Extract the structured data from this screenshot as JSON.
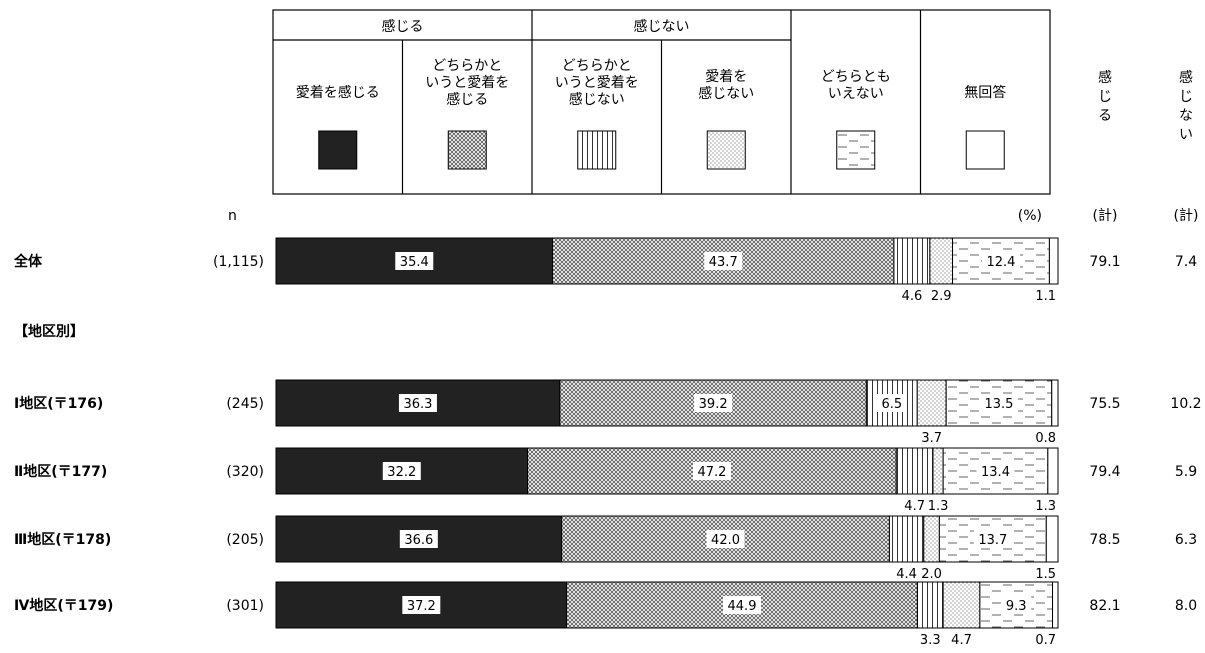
{
  "chart_data": {
    "type": "bar",
    "orientation": "horizontal",
    "stacked": true,
    "percent_unit": "(%)",
    "n_label": "n",
    "legend": {
      "groups": [
        {
          "label": "感じる",
          "spans": [
            0,
            1
          ]
        },
        {
          "label": "感じない",
          "spans": [
            2,
            3
          ]
        }
      ],
      "items": [
        {
          "label_lines": [
            "愛着を感じる"
          ],
          "pattern": "solid-black"
        },
        {
          "label_lines": [
            "どちらかと",
            "いうと愛着を",
            "感じる"
          ],
          "pattern": "crosshatch"
        },
        {
          "label_lines": [
            "どちらかと",
            "いうと愛着を",
            "感じない"
          ],
          "pattern": "vertical-lines"
        },
        {
          "label_lines": [
            "愛着を",
            "感じない"
          ],
          "pattern": "dots"
        },
        {
          "label_lines": [
            "どちらとも",
            "いえない"
          ],
          "pattern": "dashes"
        },
        {
          "label_lines": [
            "無回答"
          ],
          "pattern": "white"
        }
      ]
    },
    "summary_headers": [
      {
        "label_chars": [
          "感",
          "じ",
          "る"
        ],
        "unit": "(計)"
      },
      {
        "label_chars": [
          "感",
          "じ",
          "な",
          "い"
        ],
        "unit": "(計)"
      }
    ],
    "section_labels": [
      "【地区別】"
    ],
    "rows": [
      {
        "label": "全体",
        "n": "(1,115)",
        "values": [
          35.4,
          43.7,
          4.6,
          2.9,
          12.4,
          1.1
        ],
        "total_feel": "79.1",
        "total_not_feel": "7.4"
      },
      {
        "label": "Ⅰ地区(〒176)",
        "n": "(245)",
        "values": [
          36.3,
          39.2,
          6.5,
          3.7,
          13.5,
          0.8
        ],
        "total_feel": "75.5",
        "total_not_feel": "10.2"
      },
      {
        "label": "Ⅱ地区(〒177)",
        "n": "(320)",
        "values": [
          32.2,
          47.2,
          4.7,
          1.3,
          13.4,
          1.3
        ],
        "total_feel": "79.4",
        "total_not_feel": "5.9"
      },
      {
        "label": "Ⅲ地区(〒178)",
        "n": "(205)",
        "values": [
          36.6,
          42.0,
          4.4,
          2.0,
          13.7,
          1.5
        ],
        "total_feel": "78.5",
        "total_not_feel": "6.3"
      },
      {
        "label": "Ⅳ地区(〒179)",
        "n": "(301)",
        "values": [
          37.2,
          44.9,
          3.3,
          4.7,
          9.3,
          0.7
        ],
        "total_feel": "82.1",
        "total_not_feel": "8.0"
      }
    ]
  }
}
